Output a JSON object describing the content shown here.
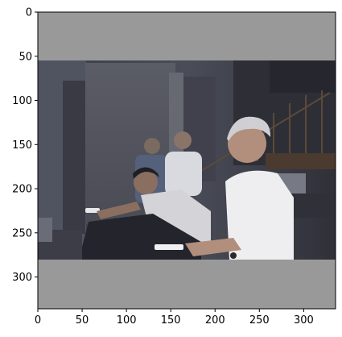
{
  "figure": {
    "x_ticks": [
      "0",
      "50",
      "100",
      "150",
      "200",
      "250",
      "300"
    ],
    "y_ticks": [
      "0",
      "50",
      "100",
      "150",
      "200",
      "250",
      "300"
    ],
    "pad_color": "#999999"
  },
  "chart_data": {
    "type": "image",
    "x": [
      0,
      50,
      100,
      150,
      200,
      250,
      300
    ],
    "y": [
      0,
      50,
      100,
      150,
      200,
      250,
      300
    ],
    "xlim": [
      0,
      336
    ],
    "ylim": [
      336,
      0
    ]
  }
}
